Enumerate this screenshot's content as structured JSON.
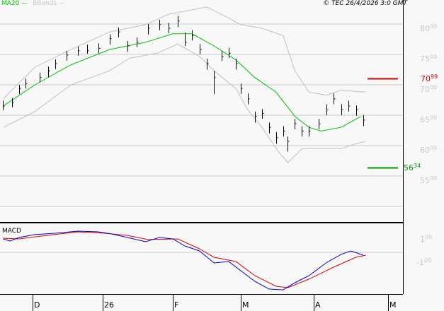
{
  "header": {
    "legend_ma": "MA20",
    "legend_bb": "BBands",
    "copyright": "© TEC 26/4/2026 3:0 GMT",
    "macd_label": "MACD"
  },
  "colors": {
    "ma": "#00c000",
    "bands": "#c0c0c0",
    "bars": "#000000",
    "resistance": "#cc0000",
    "support": "#009900",
    "macd": "#0000cc",
    "signal": "#dd0000"
  },
  "chart_data": [
    {
      "type": "ohlc",
      "ylim": [
        53,
        82.5
      ],
      "grid": true,
      "yticks": [
        {
          "v": 80,
          "big": "80",
          "small": "00"
        },
        {
          "v": 75,
          "big": "75",
          "small": "00"
        },
        {
          "v": 70,
          "big": "70",
          "small": "00"
        },
        {
          "v": 65,
          "big": "65",
          "small": "00"
        },
        {
          "v": 60,
          "big": "60",
          "small": "00"
        },
        {
          "v": 55,
          "big": "55",
          "small": "00"
        }
      ],
      "levels": [
        {
          "name": "resistance",
          "value": 70.99,
          "big": "70",
          "small": "99"
        },
        {
          "name": "support",
          "value": 56.34,
          "big": "56",
          "small": "34"
        }
      ],
      "bars": [
        [
          "2025-11-18",
          65.8,
          67.4,
          66.5
        ],
        [
          "2025-11-22",
          66.3,
          67.8,
          67.1
        ],
        [
          "2025-11-25",
          68.5,
          70.0,
          69.4
        ],
        [
          "2025-11-28",
          69.4,
          71.0,
          70.2
        ],
        [
          "2025-12-04",
          70.4,
          72.0,
          71.2
        ],
        [
          "2025-12-08",
          71.3,
          73.0,
          72.3
        ],
        [
          "2025-12-11",
          72.6,
          74.2,
          73.5
        ],
        [
          "2025-12-16",
          74.0,
          75.6,
          74.9
        ],
        [
          "2025-12-21",
          74.8,
          76.3,
          75.6
        ],
        [
          "2025-12-25",
          75.1,
          76.6,
          75.6
        ],
        [
          "2025-12-30",
          75.2,
          76.8,
          76.0
        ],
        [
          "2026-01-04",
          76.6,
          78.3,
          77.6
        ],
        [
          "2026-01-08",
          77.8,
          79.4,
          78.7
        ],
        [
          "2026-01-12",
          75.5,
          77.2,
          76.4
        ],
        [
          "2026-01-16",
          76.2,
          77.8,
          77.0
        ],
        [
          "2026-01-21",
          78.3,
          80.0,
          79.3
        ],
        [
          "2026-01-26",
          79.0,
          80.7,
          79.9
        ],
        [
          "2026-01-30",
          78.5,
          80.2,
          79.3
        ],
        [
          "2026-02-03",
          79.5,
          81.3,
          80.5
        ],
        [
          "2026-02-06",
          76.4,
          78.6,
          77.0
        ],
        [
          "2026-02-09",
          77.3,
          79.0,
          78.1
        ],
        [
          "2026-02-12",
          75.0,
          76.7,
          75.8
        ],
        [
          "2026-02-15",
          72.5,
          74.3,
          73.5
        ],
        [
          "2026-02-18",
          68.5,
          72.3,
          71.2
        ],
        [
          "2026-02-21",
          73.9,
          75.6,
          74.7
        ],
        [
          "2026-02-24",
          74.4,
          76.1,
          75.2
        ],
        [
          "2026-02-27",
          72.5,
          74.3,
          73.5
        ],
        [
          "2026-03-01",
          68.5,
          70.2,
          69.4
        ],
        [
          "2026-03-04",
          66.8,
          68.6,
          67.7
        ],
        [
          "2026-03-07",
          63.8,
          65.6,
          64.8
        ],
        [
          "2026-03-10",
          64.4,
          66.0,
          65.3
        ],
        [
          "2026-03-13",
          62.0,
          63.8,
          63.0
        ],
        [
          "2026-03-16",
          60.3,
          62.2,
          61.3
        ],
        [
          "2026-03-19",
          61.5,
          63.2,
          62.4
        ],
        [
          "2026-03-21",
          59.0,
          61.5,
          60.7
        ],
        [
          "2026-03-24",
          62.7,
          64.4,
          63.6
        ],
        [
          "2026-03-27",
          61.5,
          63.2,
          62.4
        ],
        [
          "2026-03-30",
          61.5,
          63.2,
          62.4
        ],
        [
          "2026-04-03",
          62.7,
          64.4,
          63.6
        ],
        [
          "2026-04-06",
          65.0,
          66.8,
          65.9
        ],
        [
          "2026-04-09",
          66.8,
          68.6,
          67.7
        ],
        [
          "2026-04-12",
          65.0,
          66.8,
          65.9
        ],
        [
          "2026-04-15",
          65.6,
          67.4,
          66.5
        ],
        [
          "2026-04-18",
          64.9,
          66.6,
          65.9
        ],
        [
          "2026-04-21",
          63.2,
          65.0,
          64.2
        ]
      ],
      "ma20": [
        [
          "2025-11-18",
          66.5
        ],
        [
          "2025-12-02",
          70.0
        ],
        [
          "2025-12-18",
          73.3
        ],
        [
          "2026-01-04",
          75.8
        ],
        [
          "2026-01-20",
          77.0
        ],
        [
          "2026-02-01",
          78.4
        ],
        [
          "2026-02-09",
          78.4
        ],
        [
          "2026-02-18",
          76.4
        ],
        [
          "2026-02-27",
          74.1
        ],
        [
          "2026-03-07",
          71.2
        ],
        [
          "2026-03-16",
          68.8
        ],
        [
          "2026-03-24",
          64.8
        ],
        [
          "2026-03-30",
          63.0
        ],
        [
          "2026-04-04",
          62.4
        ],
        [
          "2026-04-12",
          63.0
        ],
        [
          "2026-04-20",
          64.8
        ]
      ],
      "upper_band": [
        [
          "2025-11-18",
          67.7
        ],
        [
          "2025-12-02",
          72.9
        ],
        [
          "2025-12-18",
          75.8
        ],
        [
          "2026-01-04",
          78.7
        ],
        [
          "2026-01-20",
          79.9
        ],
        [
          "2026-01-30",
          81.6
        ],
        [
          "2026-02-15",
          82.8
        ],
        [
          "2026-02-24",
          81.0
        ],
        [
          "2026-03-01",
          79.9
        ],
        [
          "2026-03-10",
          79.3
        ],
        [
          "2026-03-19",
          78.1
        ],
        [
          "2026-03-24",
          72.3
        ],
        [
          "2026-03-30",
          68.8
        ],
        [
          "2026-04-06",
          68.3
        ],
        [
          "2026-04-12",
          69.1
        ],
        [
          "2026-04-22",
          68.8
        ]
      ],
      "lower_band": [
        [
          "2025-11-18",
          63.0
        ],
        [
          "2025-12-02",
          65.6
        ],
        [
          "2025-12-18",
          70.0
        ],
        [
          "2026-01-04",
          72.3
        ],
        [
          "2026-01-13",
          74.4
        ],
        [
          "2026-01-25",
          75.2
        ],
        [
          "2026-02-03",
          76.7
        ],
        [
          "2026-02-12",
          74.7
        ],
        [
          "2026-02-18",
          72.3
        ],
        [
          "2026-02-27",
          69.4
        ],
        [
          "2026-03-04",
          65.9
        ],
        [
          "2026-03-10",
          63.0
        ],
        [
          "2026-03-17",
          59.0
        ],
        [
          "2026-03-21",
          57.2
        ],
        [
          "2026-03-27",
          59.5
        ],
        [
          "2026-04-03",
          59.5
        ],
        [
          "2026-04-12",
          59.5
        ],
        [
          "2026-04-18",
          60.3
        ],
        [
          "2026-04-22",
          60.7
        ]
      ]
    },
    {
      "type": "line",
      "title": "MACD",
      "ylim": [
        -4.2,
        2.9
      ],
      "yticks": [
        {
          "v": 1,
          "big": "1",
          "small": "00"
        },
        {
          "v": -1,
          "big": "-1",
          "small": "00"
        }
      ],
      "series": [
        {
          "role": "macd",
          "values": [
            [
              "2025-11-18",
              1.36
            ],
            [
              "2025-11-21",
              1.14
            ],
            [
              "2025-11-25",
              1.5
            ],
            [
              "2025-12-02",
              1.79
            ],
            [
              "2025-12-11",
              1.93
            ],
            [
              "2025-12-21",
              2.14
            ],
            [
              "2025-12-30",
              2.07
            ],
            [
              "2026-01-05",
              1.86
            ],
            [
              "2026-01-12",
              1.5
            ],
            [
              "2026-01-20",
              1.07
            ],
            [
              "2026-01-26",
              1.5
            ],
            [
              "2026-02-01",
              1.36
            ],
            [
              "2026-02-06",
              0.64
            ],
            [
              "2026-02-12",
              0.14
            ],
            [
              "2026-02-18",
              -1.07
            ],
            [
              "2026-02-24",
              -0.93
            ],
            [
              "2026-03-01",
              -1.86
            ],
            [
              "2026-03-07",
              -2.93
            ],
            [
              "2026-03-13",
              -3.71
            ],
            [
              "2026-03-19",
              -3.79
            ],
            [
              "2026-03-24",
              -3.07
            ],
            [
              "2026-03-30",
              -2.36
            ],
            [
              "2026-04-06",
              -1.07
            ],
            [
              "2026-04-12",
              -0.21
            ],
            [
              "2026-04-16",
              0.14
            ],
            [
              "2026-04-21",
              -0.29
            ]
          ]
        },
        {
          "role": "signal",
          "values": [
            [
              "2025-11-18",
              1.43
            ],
            [
              "2025-11-25",
              1.36
            ],
            [
              "2025-12-05",
              1.64
            ],
            [
              "2025-12-21",
              2.07
            ],
            [
              "2026-01-02",
              1.93
            ],
            [
              "2026-01-12",
              1.71
            ],
            [
              "2026-01-21",
              1.29
            ],
            [
              "2026-02-03",
              1.36
            ],
            [
              "2026-02-12",
              0.36
            ],
            [
              "2026-02-18",
              -0.5
            ],
            [
              "2026-02-27",
              -0.93
            ],
            [
              "2026-03-07",
              -2.36
            ],
            [
              "2026-03-16",
              -3.43
            ],
            [
              "2026-03-21",
              -3.57
            ],
            [
              "2026-03-30",
              -2.71
            ],
            [
              "2026-04-09",
              -1.5
            ],
            [
              "2026-04-18",
              -0.5
            ],
            [
              "2026-04-22",
              -0.29
            ]
          ]
        }
      ]
    }
  ],
  "xaxis": {
    "ticks": [
      {
        "label": "D",
        "date": "2025-12-01"
      },
      {
        "label": "26",
        "date": "2026-01-01"
      },
      {
        "label": "F",
        "date": "2026-02-01"
      },
      {
        "label": "M",
        "date": "2026-03-01"
      },
      {
        "label": "A",
        "date": "2026-04-01"
      },
      {
        "label": "M",
        "date": "2026-05-01"
      }
    ]
  }
}
